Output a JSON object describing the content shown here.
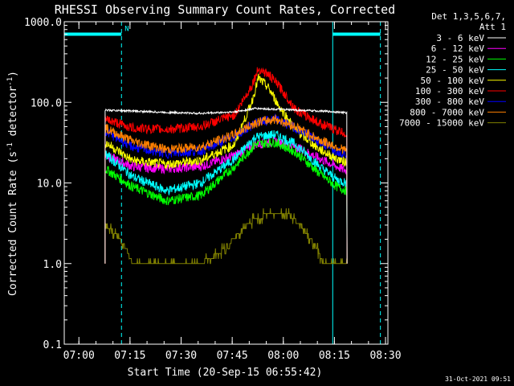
{
  "chart_data": {
    "type": "line",
    "title": "RHESSI Observing Summary Count Rates, Corrected",
    "xlabel": "Start Time (20-Sep-15 06:55:42)",
    "ylabel": "Corrected Count Rate (s",
    "ylabel_sup1": "-1",
    "ylabel_mid": " detector",
    "ylabel_sup2": "-1",
    "ylabel_end": ")",
    "y_scale": "log",
    "ylim": [
      0.1,
      1000
    ],
    "xlim_minutes": [
      0,
      95
    ],
    "x_ticks": [
      {
        "label": "07:00",
        "min": 4.3
      },
      {
        "label": "07:15",
        "min": 19.3
      },
      {
        "label": "07:30",
        "min": 34.3
      },
      {
        "label": "07:45",
        "min": 49.3
      },
      {
        "label": "08:00",
        "min": 64.3
      },
      {
        "label": "08:15",
        "min": 79.3
      },
      {
        "label": "08:30",
        "min": 94.3
      }
    ],
    "y_ticks": [
      "0.1",
      "1.0",
      "10.0",
      "100.0",
      "1000.0"
    ],
    "legend_header": [
      "Det 1,3,5,6,7,",
      "Att 1"
    ],
    "legend_placement": "right",
    "night_marker_label": "N",
    "attenuator_bars_y": 700,
    "solid_markers_min": [
      0,
      78.8
    ],
    "dashed_markers_min": [
      16.8,
      92.8
    ],
    "timestamp": "31-Oct-2021 09:51",
    "series": [
      {
        "name": "3 - 6 keV",
        "color": "#ffffff",
        "x": [
          12,
          20,
          30,
          40,
          50,
          56,
          62,
          68,
          75,
          80,
          83
        ],
        "y": [
          80,
          78,
          75,
          73,
          76,
          84,
          82,
          80,
          78,
          76,
          74
        ]
      },
      {
        "name": "6 - 12 keV",
        "color": "#ff00ff",
        "x": [
          12,
          20,
          30,
          40,
          50,
          56,
          62,
          68,
          75,
          80,
          83
        ],
        "y": [
          22,
          16,
          15,
          16,
          22,
          30,
          33,
          28,
          20,
          16,
          14
        ]
      },
      {
        "name": "12 - 25 keV",
        "color": "#00ff00",
        "x": [
          12,
          20,
          30,
          40,
          50,
          56,
          62,
          68,
          75,
          80,
          83
        ],
        "y": [
          15,
          9,
          6,
          7,
          16,
          30,
          32,
          24,
          13,
          9,
          8
        ]
      },
      {
        "name": "25 - 50 keV",
        "color": "#00ffff",
        "x": [
          12,
          20,
          30,
          40,
          50,
          56,
          62,
          68,
          75,
          80,
          83
        ],
        "y": [
          23,
          12,
          8,
          10,
          20,
          37,
          40,
          30,
          16,
          11,
          10
        ]
      },
      {
        "name": "50 - 100 keV",
        "color": "#ffff00",
        "x": [
          12,
          20,
          30,
          40,
          50,
          55,
          57,
          60,
          63,
          68,
          75,
          80,
          83
        ],
        "y": [
          32,
          19,
          17,
          19,
          30,
          100,
          200,
          150,
          90,
          45,
          26,
          20,
          18
        ]
      },
      {
        "name": "100 - 300 keV",
        "color": "#ff0000",
        "x": [
          12,
          20,
          30,
          40,
          50,
          55,
          57,
          60,
          63,
          68,
          75,
          80,
          83
        ],
        "y": [
          62,
          48,
          46,
          50,
          70,
          160,
          260,
          220,
          160,
          80,
          55,
          45,
          40
        ]
      },
      {
        "name": "300 - 800 keV",
        "color": "#0000ff",
        "x": [
          12,
          20,
          30,
          40,
          50,
          56,
          62,
          68,
          75,
          80,
          83
        ],
        "y": [
          44,
          28,
          23,
          25,
          38,
          55,
          62,
          48,
          32,
          25,
          23
        ]
      },
      {
        "name": "800 - 7000 keV",
        "color": "#ff8000",
        "x": [
          12,
          20,
          30,
          40,
          50,
          56,
          62,
          68,
          75,
          80,
          83
        ],
        "y": [
          48,
          33,
          26,
          28,
          40,
          56,
          62,
          50,
          34,
          28,
          25
        ]
      },
      {
        "name": "7000 - 15000 keV",
        "color": "#808000",
        "x": [
          12,
          14,
          18,
          20,
          30,
          36,
          40,
          46,
          52,
          56,
          62,
          66,
          70,
          74,
          76,
          80,
          83
        ],
        "y": [
          3,
          2.6,
          1.6,
          1,
          1,
          1,
          1,
          1.4,
          2.6,
          3.6,
          4.4,
          4,
          2.8,
          1.6,
          1,
          1,
          1
        ]
      }
    ]
  }
}
